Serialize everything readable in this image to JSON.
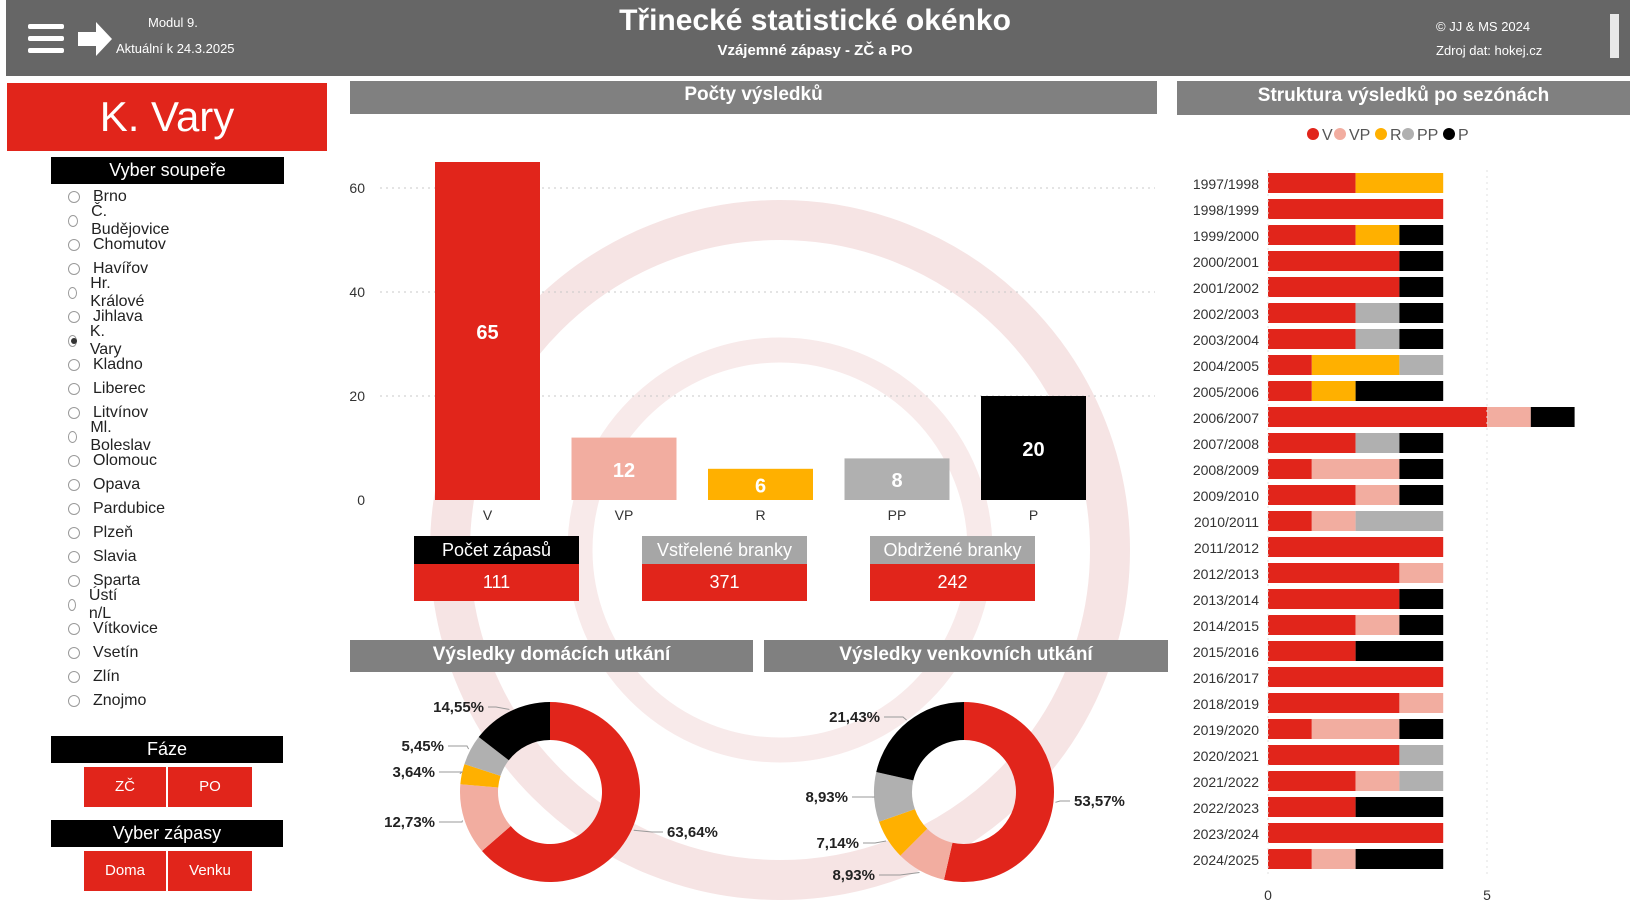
{
  "header": {
    "module": "Modul 9.",
    "updated": "Aktuální k 24.3.2025",
    "title": "Třinecké statistické okénko",
    "subtitle": "Vzájemné zápasy - ZČ a PO",
    "copyright": "© JJ & MS 2024",
    "source": "Zdroj dat: hokej.cz"
  },
  "sidebar": {
    "team": "K. Vary",
    "opponent_header": "Vyber soupeře",
    "opponents": [
      "Brno",
      "Č. Budějovice",
      "Chomutov",
      "Havířov",
      "Hr. Králové",
      "Jihlava",
      "K. Vary",
      "Kladno",
      "Liberec",
      "Litvínov",
      "Ml. Boleslav",
      "Olomouc",
      "Opava",
      "Pardubice",
      "Plzeň",
      "Slavia",
      "Sparta",
      "Ústí n/L",
      "Vítkovice",
      "Vsetín",
      "Zlín",
      "Znojmo"
    ],
    "selected_opponent": "K. Vary",
    "phase_header": "Fáze",
    "phase_buttons": [
      "ZČ",
      "PO"
    ],
    "venue_header": "Vyber zápasy",
    "venue_buttons": [
      "Doma",
      "Venku"
    ]
  },
  "sections": {
    "counts": "Počty výsledků",
    "structure": "Struktura výsledků po sezónách",
    "home": "Výsledky domácích utkání",
    "away": "Výsledky venkovních utkání"
  },
  "kpis": [
    {
      "label": "Počet zápasů",
      "value": "111"
    },
    {
      "label": "Vstřelené branky",
      "value": "371"
    },
    {
      "label": "Obdržené branky",
      "value": "242"
    }
  ],
  "colors": {
    "V": "#e1251b",
    "VP": "#f2ada0",
    "R": "#ffb000",
    "PP": "#b0b0b0",
    "P": "#000000",
    "header": "#666666"
  },
  "chart_data": [
    {
      "type": "bar",
      "title": "Počty výsledků",
      "categories": [
        "V",
        "VP",
        "R",
        "PP",
        "P"
      ],
      "values": [
        65,
        12,
        6,
        8,
        20
      ],
      "yticks": [
        0,
        20,
        40,
        60
      ],
      "ylim": [
        0,
        66
      ],
      "colors": [
        "#e1251b",
        "#f2ada0",
        "#ffb000",
        "#b0b0b0",
        "#000000"
      ]
    },
    {
      "type": "bar",
      "orientation": "horizontal-stacked",
      "title": "Struktura výsledků po sezónách",
      "legend": [
        "V",
        "VP",
        "R",
        "PP",
        "P"
      ],
      "xticks": [
        0,
        5
      ],
      "categories": [
        "1997/1998",
        "1998/1999",
        "1999/2000",
        "2000/2001",
        "2001/2002",
        "2002/2003",
        "2003/2004",
        "2004/2005",
        "2005/2006",
        "2006/2007",
        "2007/2008",
        "2008/2009",
        "2009/2010",
        "2010/2011",
        "2011/2012",
        "2012/2013",
        "2013/2014",
        "2014/2015",
        "2015/2016",
        "2016/2017",
        "2018/2019",
        "2019/2020",
        "2020/2021",
        "2021/2022",
        "2022/2023",
        "2023/2024",
        "2024/2025"
      ],
      "series": [
        {
          "name": "V",
          "values": [
            2,
            4,
            2,
            3,
            3,
            2,
            2,
            1,
            1,
            5,
            2,
            1,
            2,
            1,
            4,
            3,
            3,
            2,
            2,
            4,
            3,
            1,
            3,
            2,
            2,
            4,
            1
          ]
        },
        {
          "name": "VP",
          "values": [
            0,
            0,
            0,
            0,
            0,
            0,
            0,
            0,
            0,
            1,
            0,
            2,
            1,
            1,
            0,
            1,
            0,
            1,
            0,
            0,
            1,
            2,
            0,
            1,
            0,
            0,
            1
          ]
        },
        {
          "name": "R",
          "values": [
            2,
            0,
            1,
            0,
            0,
            0,
            0,
            2,
            1,
            0,
            0,
            0,
            0,
            0,
            0,
            0,
            0,
            0,
            0,
            0,
            0,
            0,
            0,
            0,
            0,
            0,
            0
          ]
        },
        {
          "name": "PP",
          "values": [
            0,
            0,
            0,
            0,
            0,
            1,
            1,
            1,
            0,
            0,
            1,
            0,
            0,
            2,
            0,
            0,
            0,
            0,
            0,
            0,
            0,
            0,
            1,
            1,
            0,
            0,
            0
          ]
        },
        {
          "name": "P",
          "values": [
            0,
            0,
            1,
            1,
            1,
            1,
            1,
            0,
            2,
            1,
            1,
            1,
            1,
            0,
            0,
            0,
            1,
            1,
            2,
            0,
            0,
            1,
            0,
            0,
            2,
            0,
            2
          ]
        }
      ]
    },
    {
      "type": "pie",
      "title": "Výsledky domácích utkání",
      "labels": [
        "V",
        "VP",
        "R",
        "PP",
        "P"
      ],
      "values": [
        63.64,
        12.73,
        3.64,
        5.45,
        14.55
      ],
      "value_labels": [
        "63,64%",
        "12,73%",
        "3,64%",
        "5,45%",
        "14,55%"
      ]
    },
    {
      "type": "pie",
      "title": "Výsledky venkovních utkání",
      "labels": [
        "V",
        "VP",
        "R",
        "PP",
        "P"
      ],
      "values": [
        53.57,
        8.93,
        7.14,
        8.93,
        21.43
      ],
      "value_labels": [
        "53,57%",
        "8,93%",
        "7,14%",
        "8,93%",
        "21,43%"
      ]
    }
  ]
}
